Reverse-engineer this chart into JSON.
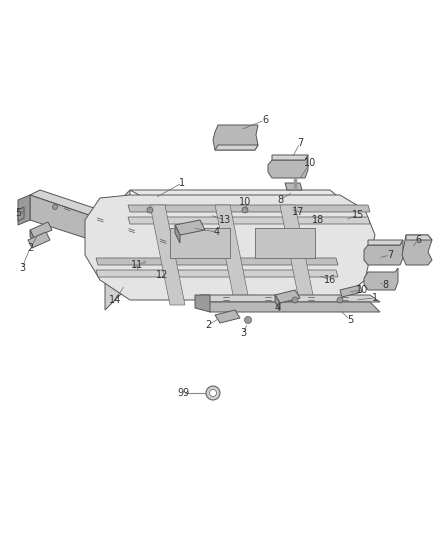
{
  "background_color": "#ffffff",
  "fig_width": 4.38,
  "fig_height": 5.33,
  "dpi": 100,
  "line_color": "#555555",
  "label_color": "#333333",
  "label_fontsize": 7.0,
  "line_width": 0.7,
  "fill_light": "#d4d4d4",
  "fill_mid": "#b8b8b8",
  "fill_dark": "#9a9a9a",
  "fill_white": "#f0f0f0"
}
